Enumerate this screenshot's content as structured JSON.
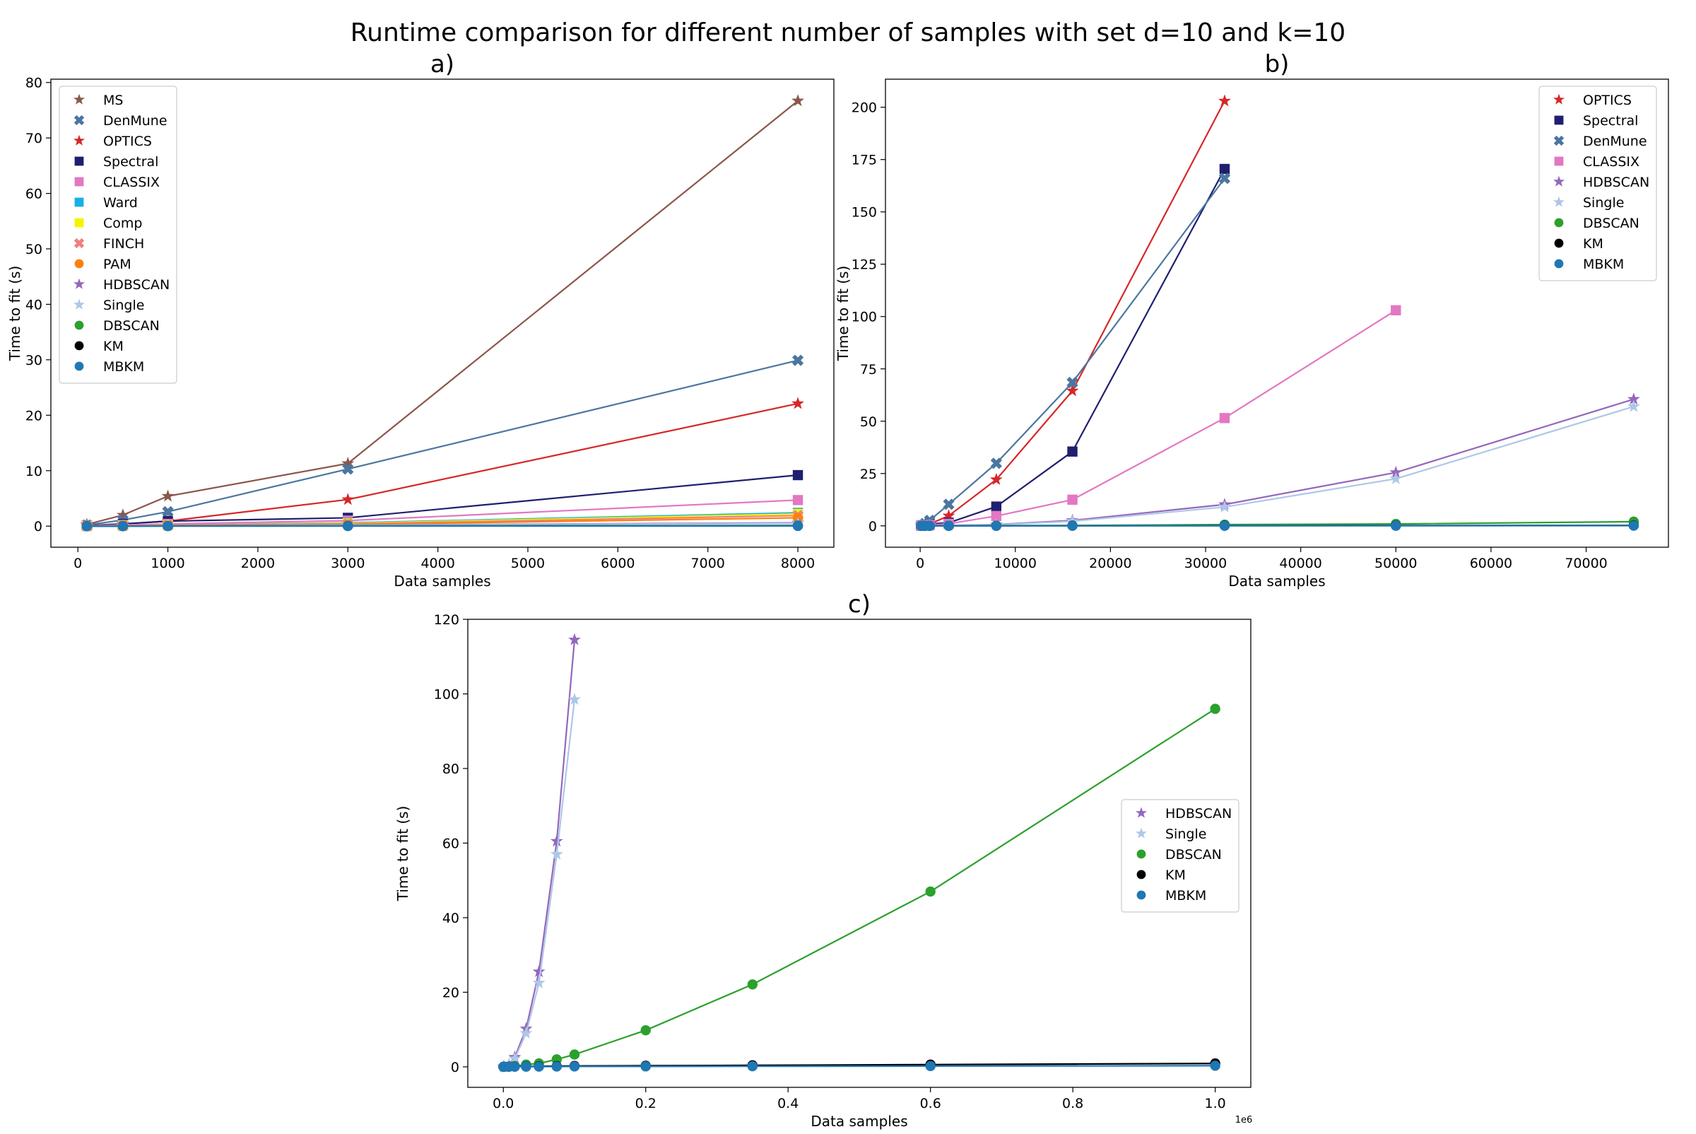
{
  "figure": {
    "title": "Runtime comparison for different number of samples with set d=10 and k=10"
  },
  "colors": {
    "MS": "#8c564b",
    "DenMune": "#4a76a0",
    "OPTICS": "#d62728",
    "Spectral": "#1f1f70",
    "CLASSIX": "#e377c2",
    "Ward": "#17b0e6",
    "Comp": "#f5f500",
    "FINCH": "#f08080",
    "PAM": "#ff7f0e",
    "HDBSCAN": "#9467bd",
    "Single": "#aec7e8",
    "DBSCAN": "#2ca02c",
    "KM": "#000000",
    "MBKM": "#1f77b4"
  },
  "markers": {
    "MS": "star-icon",
    "DenMune": "x-icon",
    "OPTICS": "star-icon",
    "Spectral": "square-icon",
    "CLASSIX": "square-icon",
    "Ward": "square-icon",
    "Comp": "square-icon",
    "FINCH": "x-icon",
    "PAM": "circle-icon",
    "HDBSCAN": "star-icon",
    "Single": "star-icon",
    "DBSCAN": "circle-icon",
    "KM": "circle-icon",
    "MBKM": "circle-icon"
  },
  "chart_data": [
    {
      "type": "line",
      "title": "a)",
      "xlabel": "Data samples",
      "ylabel": "Time to fit (s)",
      "xlim": [
        -300,
        8400
      ],
      "ylim": [
        -3.8,
        80.6
      ],
      "xticks": [
        0,
        1000,
        2000,
        3000,
        4000,
        5000,
        6000,
        7000,
        8000
      ],
      "xtick_labels": [
        "0",
        "1000",
        "2000",
        "3000",
        "4000",
        "5000",
        "6000",
        "7000",
        "8000"
      ],
      "yticks": [
        0,
        10,
        20,
        30,
        40,
        50,
        60,
        70,
        80
      ],
      "ytick_labels": [
        "0",
        "10",
        "20",
        "30",
        "40",
        "50",
        "60",
        "70",
        "80"
      ],
      "grid": false,
      "legend_position": "top-left",
      "series": [
        {
          "name": "MS",
          "x": [
            100,
            500,
            1000,
            3000,
            8000
          ],
          "y": [
            0.3,
            2.0,
            5.4,
            11.3,
            76.7
          ]
        },
        {
          "name": "DenMune",
          "x": [
            100,
            500,
            1000,
            3000,
            8000
          ],
          "y": [
            0.2,
            1.1,
            2.6,
            10.3,
            29.9
          ]
        },
        {
          "name": "OPTICS",
          "x": [
            100,
            500,
            1000,
            3000,
            8000
          ],
          "y": [
            0.1,
            0.4,
            0.9,
            4.8,
            22.1
          ]
        },
        {
          "name": "Spectral",
          "x": [
            100,
            500,
            1000,
            3000,
            8000
          ],
          "y": [
            0.1,
            0.4,
            0.9,
            1.5,
            9.2
          ]
        },
        {
          "name": "CLASSIX",
          "x": [
            100,
            500,
            1000,
            3000,
            8000
          ],
          "y": [
            0.05,
            0.2,
            0.4,
            1.0,
            4.7
          ]
        },
        {
          "name": "Ward",
          "x": [
            100,
            500,
            1000,
            3000,
            8000
          ],
          "y": [
            0.02,
            0.1,
            0.2,
            0.6,
            2.4
          ]
        },
        {
          "name": "Comp",
          "x": [
            100,
            500,
            1000,
            3000,
            8000
          ],
          "y": [
            0.02,
            0.1,
            0.2,
            0.5,
            2.2
          ]
        },
        {
          "name": "FINCH",
          "x": [
            100,
            500,
            1000,
            3000,
            8000
          ],
          "y": [
            0.02,
            0.1,
            0.2,
            0.4,
            1.9
          ]
        },
        {
          "name": "PAM",
          "x": [
            100,
            500,
            1000,
            3000,
            8000
          ],
          "y": [
            0.01,
            0.05,
            0.1,
            0.3,
            1.5
          ]
        },
        {
          "name": "HDBSCAN",
          "x": [
            100,
            500,
            1000,
            3000,
            8000
          ],
          "y": [
            0.01,
            0.03,
            0.05,
            0.2,
            0.6
          ]
        },
        {
          "name": "Single",
          "x": [
            100,
            500,
            1000,
            3000,
            8000
          ],
          "y": [
            0.01,
            0.02,
            0.04,
            0.15,
            0.5
          ]
        },
        {
          "name": "DBSCAN",
          "x": [
            100,
            500,
            1000,
            3000,
            8000
          ],
          "y": [
            0.01,
            0.02,
            0.03,
            0.05,
            0.1
          ]
        },
        {
          "name": "KM",
          "x": [
            100,
            500,
            1000,
            3000,
            8000
          ],
          "y": [
            0.01,
            0.01,
            0.02,
            0.03,
            0.05
          ]
        },
        {
          "name": "MBKM",
          "x": [
            100,
            500,
            1000,
            3000,
            8000
          ],
          "y": [
            0.01,
            0.01,
            0.02,
            0.02,
            0.03
          ]
        }
      ]
    },
    {
      "type": "line",
      "title": "b)",
      "xlabel": "Data samples",
      "ylabel": "Time to fit (s)",
      "xlim": [
        -3650,
        78650
      ],
      "ylim": [
        -10.2,
        213.4
      ],
      "xticks": [
        0,
        10000,
        20000,
        30000,
        40000,
        50000,
        60000,
        70000
      ],
      "xtick_labels": [
        "0",
        "10000",
        "20000",
        "30000",
        "40000",
        "50000",
        "60000",
        "70000"
      ],
      "yticks": [
        0,
        25,
        50,
        75,
        100,
        125,
        150,
        175,
        200
      ],
      "ytick_labels": [
        "0",
        "25",
        "50",
        "75",
        "100",
        "125",
        "150",
        "175",
        "200"
      ],
      "grid": false,
      "legend_position": "top-right",
      "series": [
        {
          "name": "OPTICS",
          "x": [
            100,
            500,
            1000,
            3000,
            8000,
            16000,
            32000
          ],
          "y": [
            0.1,
            0.4,
            0.9,
            4.8,
            22.1,
            64.5,
            203.0
          ]
        },
        {
          "name": "Spectral",
          "x": [
            100,
            500,
            1000,
            3000,
            8000,
            16000,
            32000
          ],
          "y": [
            0.1,
            0.4,
            0.9,
            1.5,
            9.2,
            35.5,
            170.5
          ]
        },
        {
          "name": "DenMune",
          "x": [
            100,
            500,
            1000,
            3000,
            8000,
            16000,
            32000
          ],
          "y": [
            0.2,
            1.1,
            2.6,
            10.3,
            29.9,
            68.5,
            166.0
          ]
        },
        {
          "name": "CLASSIX",
          "x": [
            100,
            500,
            1000,
            3000,
            8000,
            16000,
            32000,
            50000
          ],
          "y": [
            0.05,
            0.2,
            0.4,
            1.0,
            4.7,
            12.5,
            51.5,
            103.0
          ]
        },
        {
          "name": "HDBSCAN",
          "x": [
            100,
            500,
            1000,
            3000,
            8000,
            16000,
            32000,
            50000,
            75000
          ],
          "y": [
            0.01,
            0.03,
            0.05,
            0.2,
            0.6,
            2.6,
            10.2,
            25.5,
            60.5
          ]
        },
        {
          "name": "Single",
          "x": [
            100,
            500,
            1000,
            3000,
            8000,
            16000,
            32000,
            50000,
            75000
          ],
          "y": [
            0.01,
            0.02,
            0.04,
            0.15,
            0.5,
            2.2,
            9.0,
            22.5,
            57.0
          ]
        },
        {
          "name": "DBSCAN",
          "x": [
            100,
            500,
            1000,
            3000,
            8000,
            16000,
            32000,
            50000,
            75000
          ],
          "y": [
            0.01,
            0.02,
            0.03,
            0.05,
            0.1,
            0.2,
            0.6,
            0.9,
            2.0
          ]
        },
        {
          "name": "KM",
          "x": [
            100,
            500,
            1000,
            3000,
            8000,
            16000,
            32000,
            50000,
            75000
          ],
          "y": [
            0.01,
            0.01,
            0.02,
            0.03,
            0.05,
            0.07,
            0.1,
            0.15,
            0.2
          ]
        },
        {
          "name": "MBKM",
          "x": [
            100,
            500,
            1000,
            3000,
            8000,
            16000,
            32000,
            50000,
            75000
          ],
          "y": [
            0.01,
            0.01,
            0.02,
            0.02,
            0.03,
            0.04,
            0.05,
            0.06,
            0.08
          ]
        }
      ]
    },
    {
      "type": "line",
      "title": "c)",
      "xlabel": "Data samples",
      "ylabel": "Time to fit (s)",
      "axis_offset_label": "1e6",
      "xlim": [
        -49900,
        1050000
      ],
      "ylim": [
        -5.5,
        120.0
      ],
      "xticks": [
        0,
        200000,
        400000,
        600000,
        800000,
        1000000
      ],
      "xtick_labels": [
        "0.0",
        "0.2",
        "0.4",
        "0.6",
        "0.8",
        "1.0"
      ],
      "yticks": [
        0,
        20,
        40,
        60,
        80,
        100,
        120
      ],
      "ytick_labels": [
        "0",
        "20",
        "40",
        "60",
        "80",
        "100",
        "120"
      ],
      "grid": false,
      "legend_position": "center-right",
      "series": [
        {
          "name": "HDBSCAN",
          "x": [
            100,
            1000,
            8000,
            16000,
            32000,
            50000,
            75000,
            100000
          ],
          "y": [
            0.01,
            0.05,
            0.6,
            2.6,
            10.2,
            25.5,
            60.5,
            114.5
          ]
        },
        {
          "name": "Single",
          "x": [
            100,
            1000,
            8000,
            16000,
            32000,
            50000,
            75000,
            100000
          ],
          "y": [
            0.01,
            0.04,
            0.5,
            2.2,
            9.0,
            22.5,
            57.0,
            98.5
          ]
        },
        {
          "name": "DBSCAN",
          "x": [
            100,
            1000,
            8000,
            16000,
            32000,
            50000,
            75000,
            100000,
            200000,
            350000,
            600000,
            1000000
          ],
          "y": [
            0.01,
            0.03,
            0.1,
            0.2,
            0.6,
            0.9,
            2.0,
            3.3,
            9.8,
            22.1,
            47.0,
            96.0
          ]
        },
        {
          "name": "KM",
          "x": [
            100,
            1000,
            8000,
            16000,
            32000,
            50000,
            75000,
            100000,
            200000,
            350000,
            600000,
            1000000
          ],
          "y": [
            0.01,
            0.02,
            0.05,
            0.07,
            0.1,
            0.15,
            0.2,
            0.25,
            0.3,
            0.4,
            0.6,
            0.9
          ]
        },
        {
          "name": "MBKM",
          "x": [
            100,
            1000,
            8000,
            16000,
            32000,
            50000,
            75000,
            100000,
            200000,
            350000,
            600000,
            1000000
          ],
          "y": [
            0.01,
            0.02,
            0.03,
            0.04,
            0.05,
            0.06,
            0.08,
            0.1,
            0.12,
            0.15,
            0.2,
            0.3
          ]
        }
      ]
    }
  ]
}
